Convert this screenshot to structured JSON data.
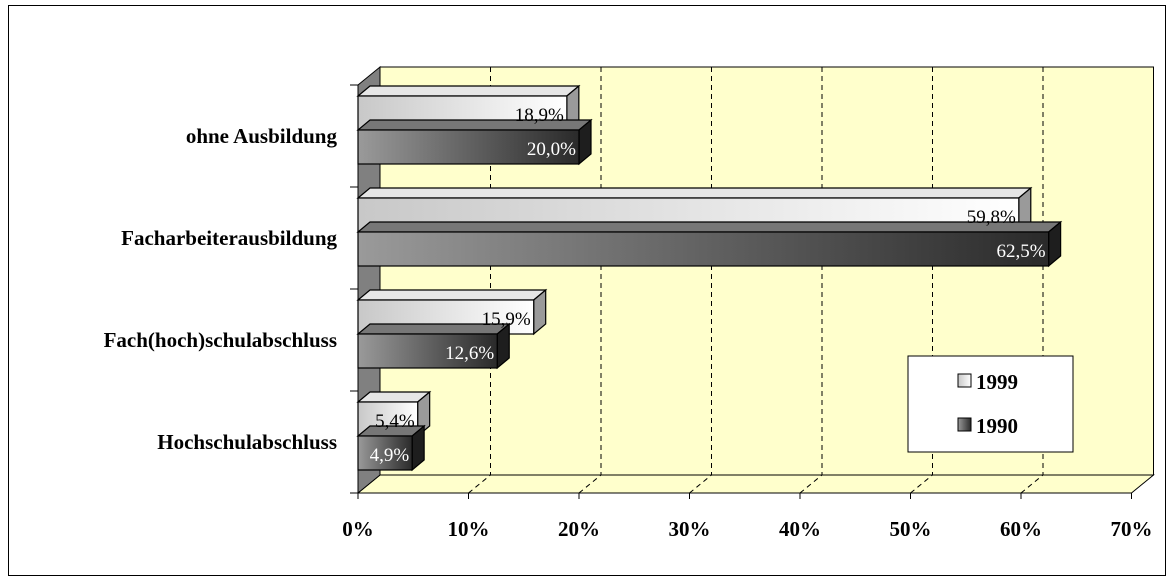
{
  "chart_data": {
    "type": "bar",
    "orientation": "horizontal",
    "style": "3d",
    "categories": [
      "ohne Ausbildung",
      "Facharbeiterausbildung",
      "Fach(hoch)schulabschluss",
      "Hochschulabschluss"
    ],
    "series": [
      {
        "name": "1999",
        "values": [
          18.9,
          59.8,
          15.9,
          5.4
        ],
        "labels": [
          "18,9%",
          "59,8%",
          "15,9%",
          "5,4%"
        ],
        "color": "#ffffff"
      },
      {
        "name": "1990",
        "values": [
          20.0,
          62.5,
          12.6,
          4.9
        ],
        "labels": [
          "20,0%",
          "62,5%",
          "12,6%",
          "4,9%"
        ],
        "color": "#333333"
      }
    ],
    "xlim": [
      0,
      70
    ],
    "xticks": [
      "0%",
      "10%",
      "20%",
      "30%",
      "40%",
      "50%",
      "60%",
      "70%"
    ],
    "grid": true,
    "legend": "right",
    "plot_background": "#ffffcc",
    "wall_color": "#808080"
  }
}
